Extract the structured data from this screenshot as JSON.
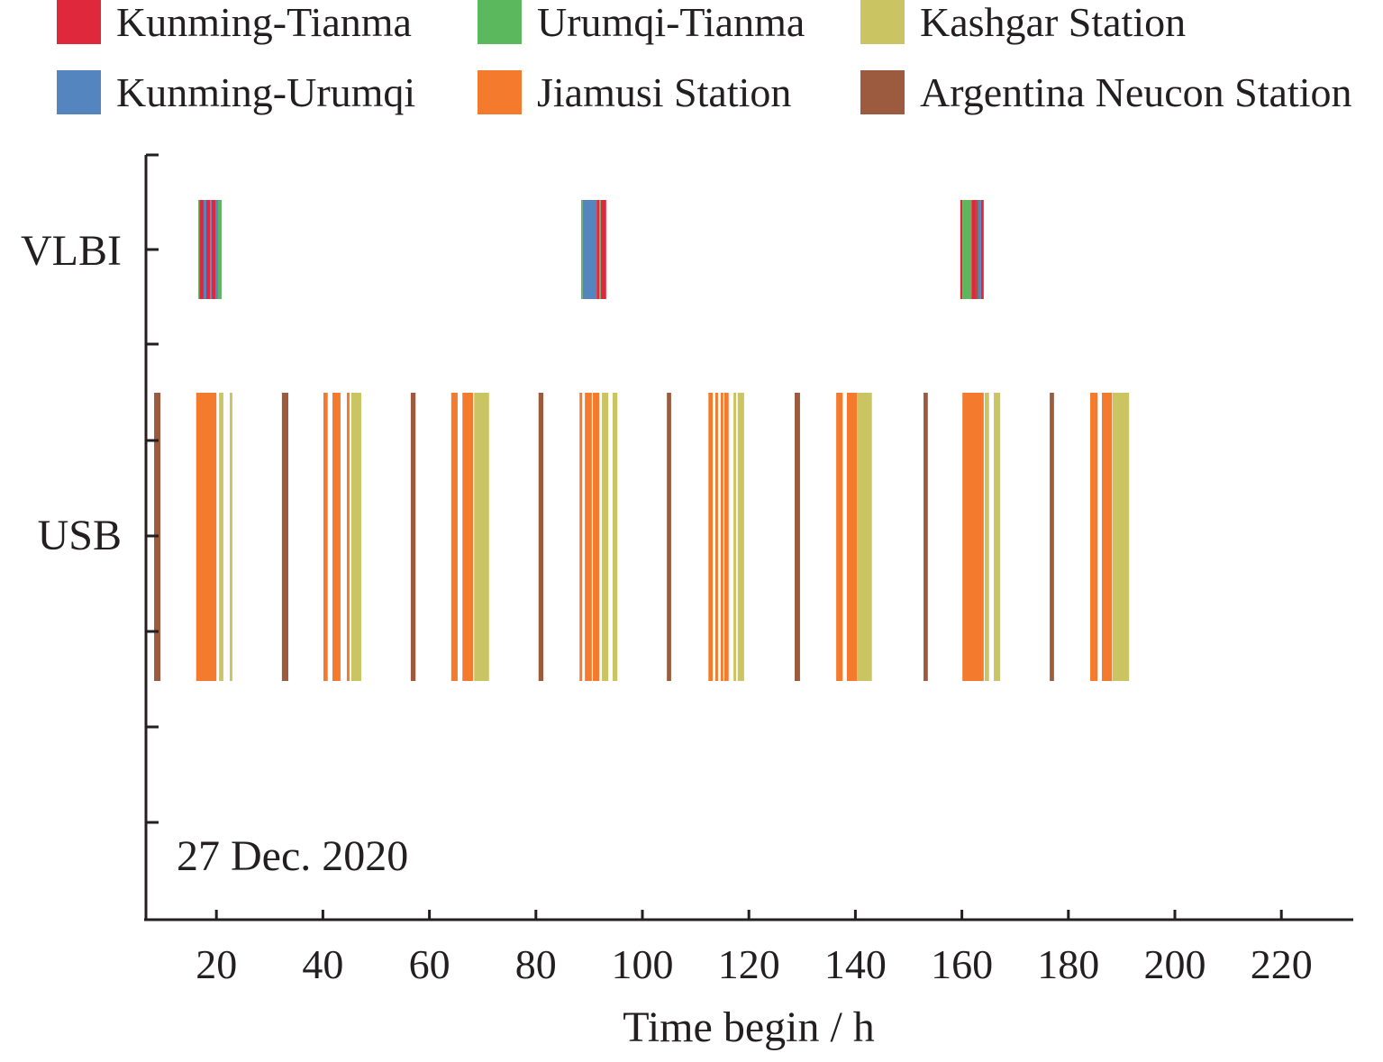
{
  "chart_data": {
    "type": "timeline",
    "title": "",
    "xlabel": "Time begin / h",
    "ylabel": "",
    "xlim": [
      6.8,
      233
    ],
    "x_ticks": [
      20,
      40,
      60,
      80,
      100,
      120,
      140,
      160,
      180,
      200,
      220
    ],
    "y_categories": [
      "VLBI",
      "USB"
    ],
    "annotation": "27 Dec. 2020",
    "legend_position": "top",
    "legend": [
      {
        "key": "kt",
        "label": "Kunming-Tianma",
        "color": "#e0283c"
      },
      {
        "key": "ut",
        "label": "Urumqi-Tianma",
        "color": "#5cb85c"
      },
      {
        "key": "ks",
        "label": "Kashgar Station",
        "color": "#cbc462"
      },
      {
        "key": "ku",
        "label": "Kunming-Urumqi",
        "color": "#5585bf"
      },
      {
        "key": "js",
        "label": "Jiamusi Station",
        "color": "#f47a2e"
      },
      {
        "key": "an",
        "label": "Argentina Neucon Station",
        "color": "#9c5a3e"
      }
    ],
    "vlbi_segments": [
      [
        "ut",
        16.6,
        16.8
      ],
      [
        "kt",
        16.8,
        17.6
      ],
      [
        "ku",
        17.6,
        18.1
      ],
      [
        "kt",
        18.1,
        18.8
      ],
      [
        "ku",
        18.8,
        19.1
      ],
      [
        "kt",
        19.1,
        19.8
      ],
      [
        "ku",
        19.8,
        20.3
      ],
      [
        "ut",
        20.3,
        21.0
      ],
      [
        "ut",
        88.5,
        88.8
      ],
      [
        "ku",
        88.8,
        91.4
      ],
      [
        "kt",
        91.4,
        91.9
      ],
      [
        "ut",
        91.9,
        92.2
      ],
      [
        "kt",
        92.2,
        93.2
      ],
      [
        "kt",
        159.7,
        160.1
      ],
      [
        "ut",
        160.1,
        161.8
      ],
      [
        "kt",
        161.8,
        162.6
      ],
      [
        "an",
        162.6,
        163.1
      ],
      [
        "ku",
        163.1,
        163.6
      ],
      [
        "kt",
        163.6,
        164.1
      ]
    ],
    "usb_segments": [
      [
        "an",
        8.3,
        9.5
      ],
      [
        "js",
        16.2,
        20.0
      ],
      [
        "ks",
        20.5,
        21.3
      ],
      [
        "ks",
        22.5,
        23.0
      ],
      [
        "an",
        32.3,
        33.5
      ],
      [
        "js",
        40.1,
        40.9
      ],
      [
        "js",
        41.8,
        43.3
      ],
      [
        "js",
        44.5,
        45.0
      ],
      [
        "ks",
        45.3,
        47.2
      ],
      [
        "an",
        56.5,
        57.4
      ],
      [
        "js",
        64.1,
        65.3
      ],
      [
        "js",
        66.2,
        68.2
      ],
      [
        "ks",
        68.4,
        71.2
      ],
      [
        "an",
        80.5,
        81.4
      ],
      [
        "js",
        88.2,
        88.7
      ],
      [
        "js",
        89.2,
        90.5
      ],
      [
        "js",
        90.7,
        91.9
      ],
      [
        "ks",
        92.4,
        93.6
      ],
      [
        "ks",
        94.4,
        95.3
      ],
      [
        "an",
        104.6,
        105.4
      ],
      [
        "js",
        112.4,
        113.2
      ],
      [
        "js",
        113.7,
        114.2
      ],
      [
        "js",
        114.7,
        115.2
      ],
      [
        "js",
        115.4,
        116.2
      ],
      [
        "ks",
        117.1,
        117.6
      ],
      [
        "ks",
        117.9,
        119.1
      ],
      [
        "an",
        128.6,
        129.6
      ],
      [
        "js",
        136.4,
        137.6
      ],
      [
        "js",
        138.4,
        140.3
      ],
      [
        "ks",
        140.3,
        143.1
      ],
      [
        "an",
        152.8,
        153.6
      ],
      [
        "js",
        160.1,
        164.1
      ],
      [
        "ks",
        164.3,
        165.1
      ],
      [
        "ks",
        166.0,
        167.2
      ],
      [
        "an",
        176.5,
        177.3
      ],
      [
        "js",
        184.1,
        185.5
      ],
      [
        "js",
        186.3,
        188.2
      ],
      [
        "ks",
        188.3,
        191.4
      ]
    ]
  }
}
